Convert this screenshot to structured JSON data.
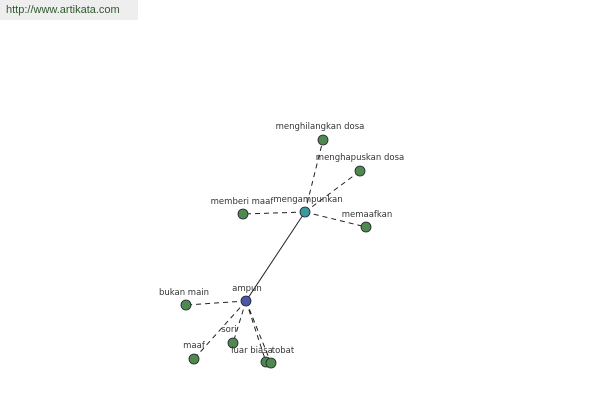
{
  "header": {
    "url": "http://www.artikata.com"
  },
  "nodes": [
    {
      "label": "ampun"
    },
    {
      "label": "mengampunkan"
    },
    {
      "label": "menghilangkan dosa"
    },
    {
      "label": "menghapuskan dosa"
    },
    {
      "label": "memberi maaf"
    },
    {
      "label": "memaafkan"
    },
    {
      "label": "bukan main"
    },
    {
      "label": "maaf"
    },
    {
      "label": "sori"
    },
    {
      "label": "luar biasa"
    },
    {
      "label": "tobat"
    }
  ]
}
